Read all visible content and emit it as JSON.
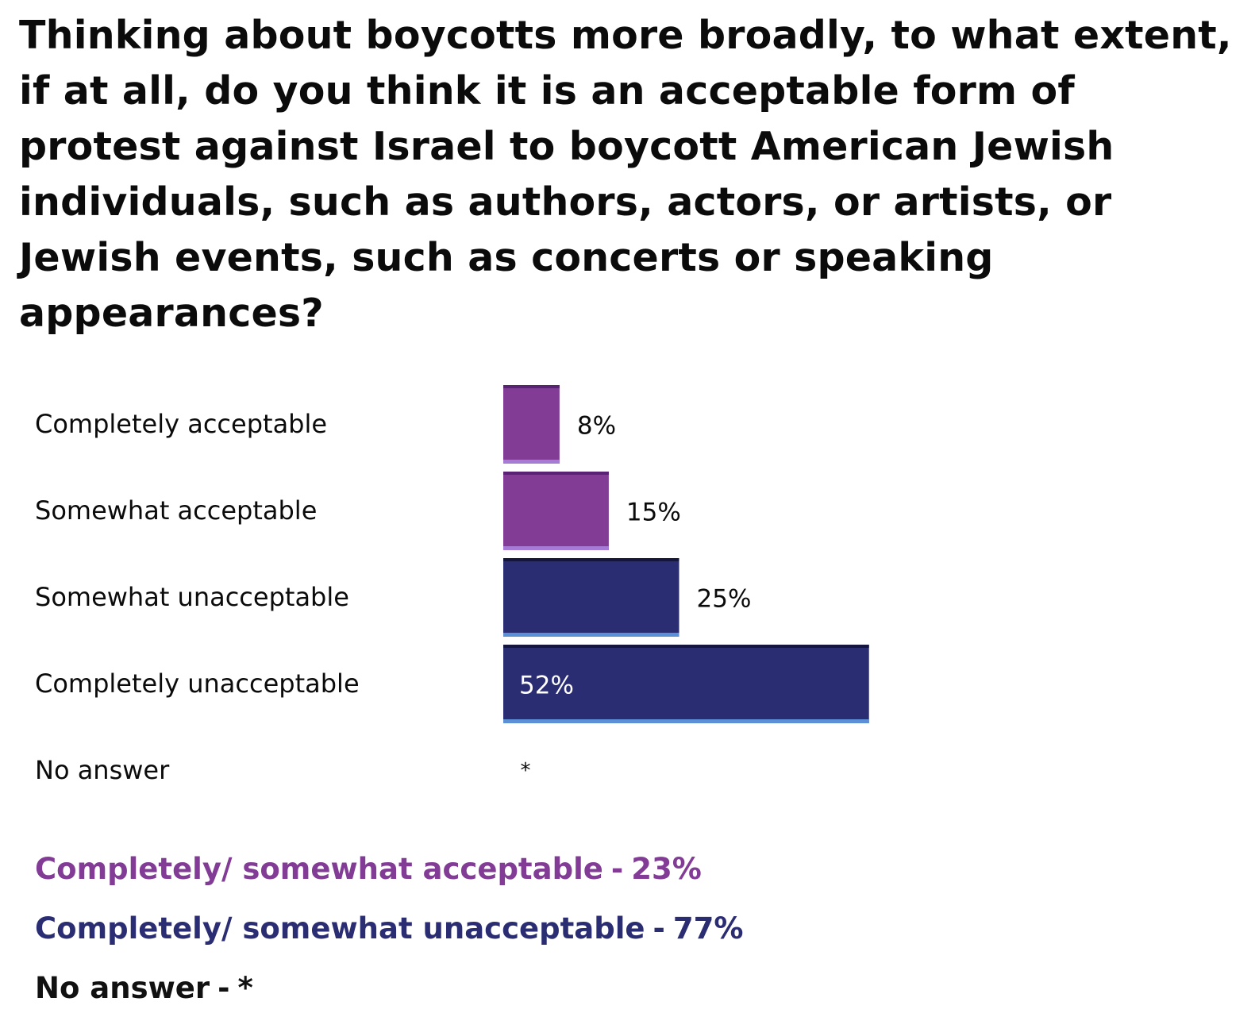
{
  "title": "Thinking about boycotts more broadly, to what extent, if at all, do you think it is an acceptable form of protest against Israel to boycott American Jewish individuals, such as authors, actors, or artists, or Jewish events, such as concerts or speaking appearances?",
  "colors": {
    "acceptable": "#823c96",
    "acceptable_top": "#5a2272",
    "acceptable_bottom": "#a67bd6",
    "unacceptable": "#2b2d73",
    "unacceptable_top": "#15163e",
    "unacceptable_bottom": "#5b8fd6",
    "text": "#0b0b0b"
  },
  "chart_data": {
    "type": "bar",
    "orientation": "horizontal",
    "categories": [
      "Completely acceptable",
      "Somewhat acceptable",
      "Somewhat unacceptable",
      "Completely unacceptable",
      "No answer"
    ],
    "values": [
      8,
      15,
      25,
      52,
      null
    ],
    "data_labels": [
      "8%",
      "15%",
      "25%",
      "52%",
      "*"
    ],
    "colors": [
      "#823c96",
      "#823c96",
      "#2b2d73",
      "#2b2d73",
      null
    ],
    "xlim": [
      0,
      100
    ],
    "grid": false,
    "axis_visible": false
  },
  "summary": [
    {
      "label": "Completely/ somewhat acceptable",
      "value": "23%",
      "color": "#823c96"
    },
    {
      "label": "Completely/ somewhat unacceptable",
      "value": "77%",
      "color": "#2b2d73"
    },
    {
      "label": "No answer",
      "value": "*",
      "color": "#111111"
    }
  ]
}
